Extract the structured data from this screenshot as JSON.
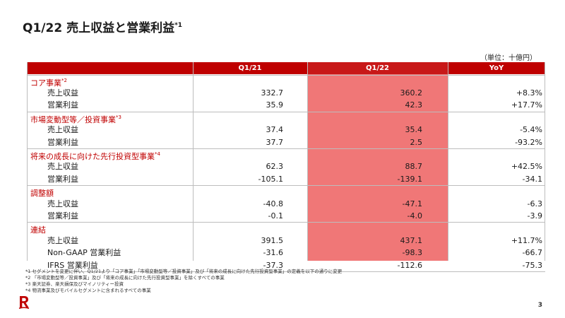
{
  "header": {
    "title": "Q1/22 売上収益と営業利益",
    "title_note": "*1",
    "unit": "（単位：十億円）"
  },
  "table": {
    "columns": [
      "Q1/21",
      "Q1/22",
      "YoY"
    ],
    "sections": [
      {
        "label": "コア事業",
        "note": "*2",
        "rows": [
          {
            "label": "売上収益",
            "q121": "332.7",
            "q122": "360.2",
            "yoy": "+8.3%"
          },
          {
            "label": "営業利益",
            "q121": "35.9",
            "q122": "42.3",
            "yoy": "+17.7%"
          }
        ]
      },
      {
        "label": "市場変動型等／投資事業",
        "note": "*3",
        "rows": [
          {
            "label": "売上収益",
            "q121": "37.4",
            "q122": "35.4",
            "yoy": "-5.4%"
          },
          {
            "label": "営業利益",
            "q121": "37.7",
            "q122": "2.5",
            "yoy": "-93.2%"
          }
        ]
      },
      {
        "label": "将来の成長に向けた先行投資型事業",
        "note": "*4",
        "rows": [
          {
            "label": "売上収益",
            "q121": "62.3",
            "q122": "88.7",
            "yoy": "+42.5%"
          },
          {
            "label": "営業利益",
            "q121": "-105.1",
            "q122": "-139.1",
            "yoy": "-34.1"
          }
        ]
      },
      {
        "label": "調整額",
        "note": "",
        "rows": [
          {
            "label": "売上収益",
            "q121": "-40.8",
            "q122": "-47.1",
            "yoy": "-6.3"
          },
          {
            "label": "営業利益",
            "q121": "-0.1",
            "q122": "-4.0",
            "yoy": "-3.9"
          }
        ]
      },
      {
        "label": "連結",
        "note": "",
        "rows": [
          {
            "label": "売上収益",
            "q121": "391.5",
            "q122": "437.1",
            "yoy": "+11.7%"
          },
          {
            "label": "Non-GAAP 営業利益",
            "q121": "-31.6",
            "q122": "-98.3",
            "yoy": "-66.7"
          },
          {
            "label": "IFRS 営業利益",
            "q121": "-37.3",
            "q122": "-112.6",
            "yoy": "-75.3"
          }
        ]
      }
    ]
  },
  "footnotes": [
    "*1 セグメントを変更に伴い、Q1/21より「コア事業」「市場変動型等／投資事業」及び「将来の成長に向けた先行投資型事業」の定義を以下の通りに変更",
    "*2 「市場変動型等／投資事業」及び「将来の成長に向けた先行投資型事業」を除くすべての事業",
    "*3 楽天証券、楽天損保及びマイノリティー投資",
    "*4 物流事業及びモバイルセグメントに含まれるすべての事業"
  ],
  "footer": {
    "page_number": "3",
    "logo_icon": "rakuten-r-logo-icon",
    "accent_color": "#bf0000",
    "highlight_color": "#f07777"
  }
}
